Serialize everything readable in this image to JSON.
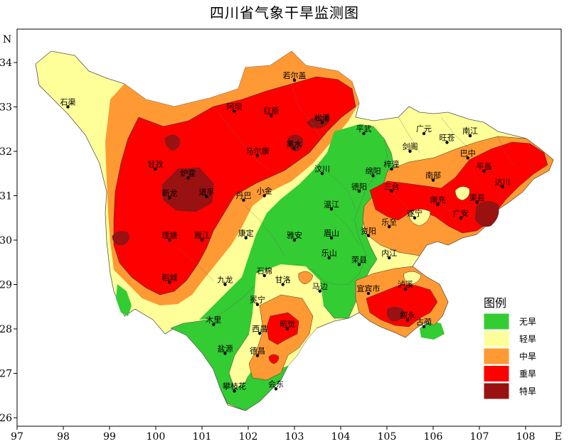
{
  "title": "四川省气象干旱监测图",
  "axes": {
    "north_label": "N",
    "east_label": "E",
    "x_ticks": [
      "97",
      "98",
      "99",
      "100",
      "101",
      "102",
      "103",
      "104",
      "105",
      "106",
      "107",
      "108"
    ],
    "y_ticks": [
      "34",
      "33",
      "32",
      "31",
      "30",
      "29",
      "28",
      "27",
      "26"
    ]
  },
  "legend": {
    "title": "图例",
    "items": [
      {
        "label": "无旱",
        "color": "#33cc33"
      },
      {
        "label": "轻旱",
        "color": "#ffff99"
      },
      {
        "label": "中旱",
        "color": "#ff9933"
      },
      {
        "label": "重旱",
        "color": "#ff0000"
      },
      {
        "label": "特旱",
        "color": "#991111"
      }
    ]
  },
  "cities": [
    {
      "name": "若尔盖",
      "lon": 103.0,
      "lat": 33.6
    },
    {
      "name": "石渠",
      "lon": 98.1,
      "lat": 33.0
    },
    {
      "name": "阿坝",
      "lon": 101.7,
      "lat": 32.9
    },
    {
      "name": "红原",
      "lon": 102.5,
      "lat": 32.8
    },
    {
      "name": "松潘",
      "lon": 103.6,
      "lat": 32.65
    },
    {
      "name": "平武",
      "lon": 104.5,
      "lat": 32.4
    },
    {
      "name": "广元",
      "lon": 105.8,
      "lat": 32.4
    },
    {
      "name": "旺苍",
      "lon": 106.3,
      "lat": 32.2
    },
    {
      "name": "南江",
      "lon": 106.8,
      "lat": 32.35
    },
    {
      "name": "马尔康",
      "lon": 102.2,
      "lat": 31.9
    },
    {
      "name": "黑水",
      "lon": 102.99,
      "lat": 32.06
    },
    {
      "name": "剑阁",
      "lon": 105.5,
      "lat": 32.0
    },
    {
      "name": "巴中",
      "lon": 106.75,
      "lat": 31.85
    },
    {
      "name": "甘孜",
      "lon": 99.99,
      "lat": 31.6
    },
    {
      "name": "炉霍",
      "lon": 100.7,
      "lat": 31.4
    },
    {
      "name": "汶川",
      "lon": 103.6,
      "lat": 31.5
    },
    {
      "name": "梓潼",
      "lon": 105.1,
      "lat": 31.6
    },
    {
      "name": "平昌",
      "lon": 107.1,
      "lat": 31.55
    },
    {
      "name": "绵阳",
      "lon": 104.7,
      "lat": 31.45
    },
    {
      "name": "南部",
      "lon": 106.0,
      "lat": 31.35
    },
    {
      "name": "达川",
      "lon": 107.5,
      "lat": 31.2
    },
    {
      "name": "新龙",
      "lon": 100.3,
      "lat": 30.95
    },
    {
      "name": "道孚",
      "lon": 101.1,
      "lat": 30.98
    },
    {
      "name": "丹巴",
      "lon": 101.9,
      "lat": 30.9
    },
    {
      "name": "小金",
      "lon": 102.35,
      "lat": 31.0
    },
    {
      "name": "德阳",
      "lon": 104.4,
      "lat": 31.1
    },
    {
      "name": "三台",
      "lon": 105.1,
      "lat": 31.1
    },
    {
      "name": "南充",
      "lon": 106.1,
      "lat": 30.8
    },
    {
      "name": "渠县",
      "lon": 106.95,
      "lat": 30.85
    },
    {
      "name": "温江",
      "lon": 103.8,
      "lat": 30.7
    },
    {
      "name": "遂宁",
      "lon": 105.6,
      "lat": 30.5
    },
    {
      "name": "广安",
      "lon": 106.6,
      "lat": 30.5
    },
    {
      "name": "乐至",
      "lon": 105.05,
      "lat": 30.3
    },
    {
      "name": "理塘",
      "lon": 100.3,
      "lat": 30.0
    },
    {
      "name": "雅江",
      "lon": 101.0,
      "lat": 30.0
    },
    {
      "name": "康定",
      "lon": 101.95,
      "lat": 30.05
    },
    {
      "name": "雅安",
      "lon": 103.0,
      "lat": 30.0
    },
    {
      "name": "眉山",
      "lon": 103.8,
      "lat": 30.05
    },
    {
      "name": "资阳",
      "lon": 104.6,
      "lat": 30.1
    },
    {
      "name": "内江",
      "lon": 105.05,
      "lat": 29.6
    },
    {
      "name": "乐山",
      "lon": 103.75,
      "lat": 29.6
    },
    {
      "name": "荣县",
      "lon": 104.4,
      "lat": 29.45
    },
    {
      "name": "石棉",
      "lon": 102.35,
      "lat": 29.2
    },
    {
      "name": "稻城",
      "lon": 100.3,
      "lat": 29.05
    },
    {
      "name": "九龙",
      "lon": 101.5,
      "lat": 29.0
    },
    {
      "name": "甘洛",
      "lon": 102.75,
      "lat": 29.0
    },
    {
      "name": "马边",
      "lon": 103.55,
      "lat": 28.85
    },
    {
      "name": "宜宾市",
      "lon": 104.6,
      "lat": 28.8
    },
    {
      "name": "泸溪",
      "lon": 105.4,
      "lat": 28.9
    },
    {
      "name": "冕宁",
      "lon": 102.2,
      "lat": 28.55
    },
    {
      "name": "古蔺",
      "lon": 105.8,
      "lat": 28.05
    },
    {
      "name": "叙永",
      "lon": 105.45,
      "lat": 28.2
    },
    {
      "name": "木里",
      "lon": 101.25,
      "lat": 28.1
    },
    {
      "name": "西昌",
      "lon": 102.25,
      "lat": 27.9
    },
    {
      "name": "昭觉",
      "lon": 102.85,
      "lat": 28.0
    },
    {
      "name": "盐源",
      "lon": 101.5,
      "lat": 27.45
    },
    {
      "name": "德昌",
      "lon": 102.2,
      "lat": 27.4
    },
    {
      "name": "会东",
      "lon": 102.6,
      "lat": 26.65
    },
    {
      "name": "攀枝花",
      "lon": 101.7,
      "lat": 26.6
    }
  ]
}
